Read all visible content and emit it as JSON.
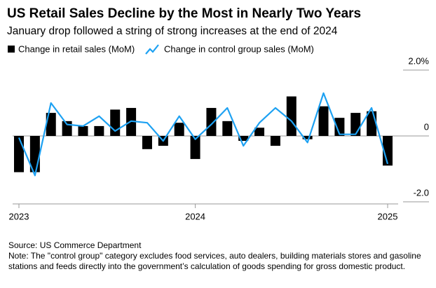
{
  "chart_data": {
    "type": "bar_line",
    "title": "US Retail Sales Decline by the Most in Nearly Two Years",
    "subtitle": "January drop followed a string of strong increases at the end of 2024",
    "categories": [
      "2023",
      null,
      null,
      null,
      null,
      null,
      null,
      null,
      null,
      null,
      null,
      "2024",
      null,
      null,
      null,
      null,
      null,
      null,
      null,
      null,
      null,
      null,
      null,
      "2025"
    ],
    "series": [
      {
        "name": "Change in retail sales (MoM)",
        "color": "#000000",
        "kind": "bar",
        "values": [
          -1.1,
          -1.1,
          0.7,
          0.45,
          0.3,
          0.3,
          0.8,
          0.85,
          -0.4,
          -0.3,
          0.4,
          -0.7,
          0.85,
          0.45,
          -0.15,
          0.25,
          -0.3,
          1.2,
          -0.1,
          0.9,
          0.55,
          0.7,
          0.75,
          -0.9
        ]
      },
      {
        "name": "Change in control group sales (MoM)",
        "color": "#1da1f2",
        "kind": "line",
        "values": [
          -0.05,
          -1.2,
          1.0,
          0.35,
          0.3,
          0.6,
          0.15,
          0.45,
          0.4,
          -0.15,
          0.6,
          -0.1,
          0.35,
          0.85,
          -0.3,
          0.4,
          0.85,
          0.45,
          -0.2,
          1.3,
          0.05,
          0.05,
          0.85,
          -0.85
        ]
      }
    ],
    "ylim": [
      -2.0,
      2.0
    ],
    "yticks": [
      {
        "value": 2.0,
        "label": "2.0%"
      },
      0,
      {
        "value": -2.0,
        "label": "-2.0"
      }
    ],
    "source": "Source: US Commerce Department",
    "note": "Note: The \"control group\" category excludes food services, auto dealers, building materials stores and gasoline stations and feeds directly into the government’s calculation of goods spending for gross domestic product."
  }
}
